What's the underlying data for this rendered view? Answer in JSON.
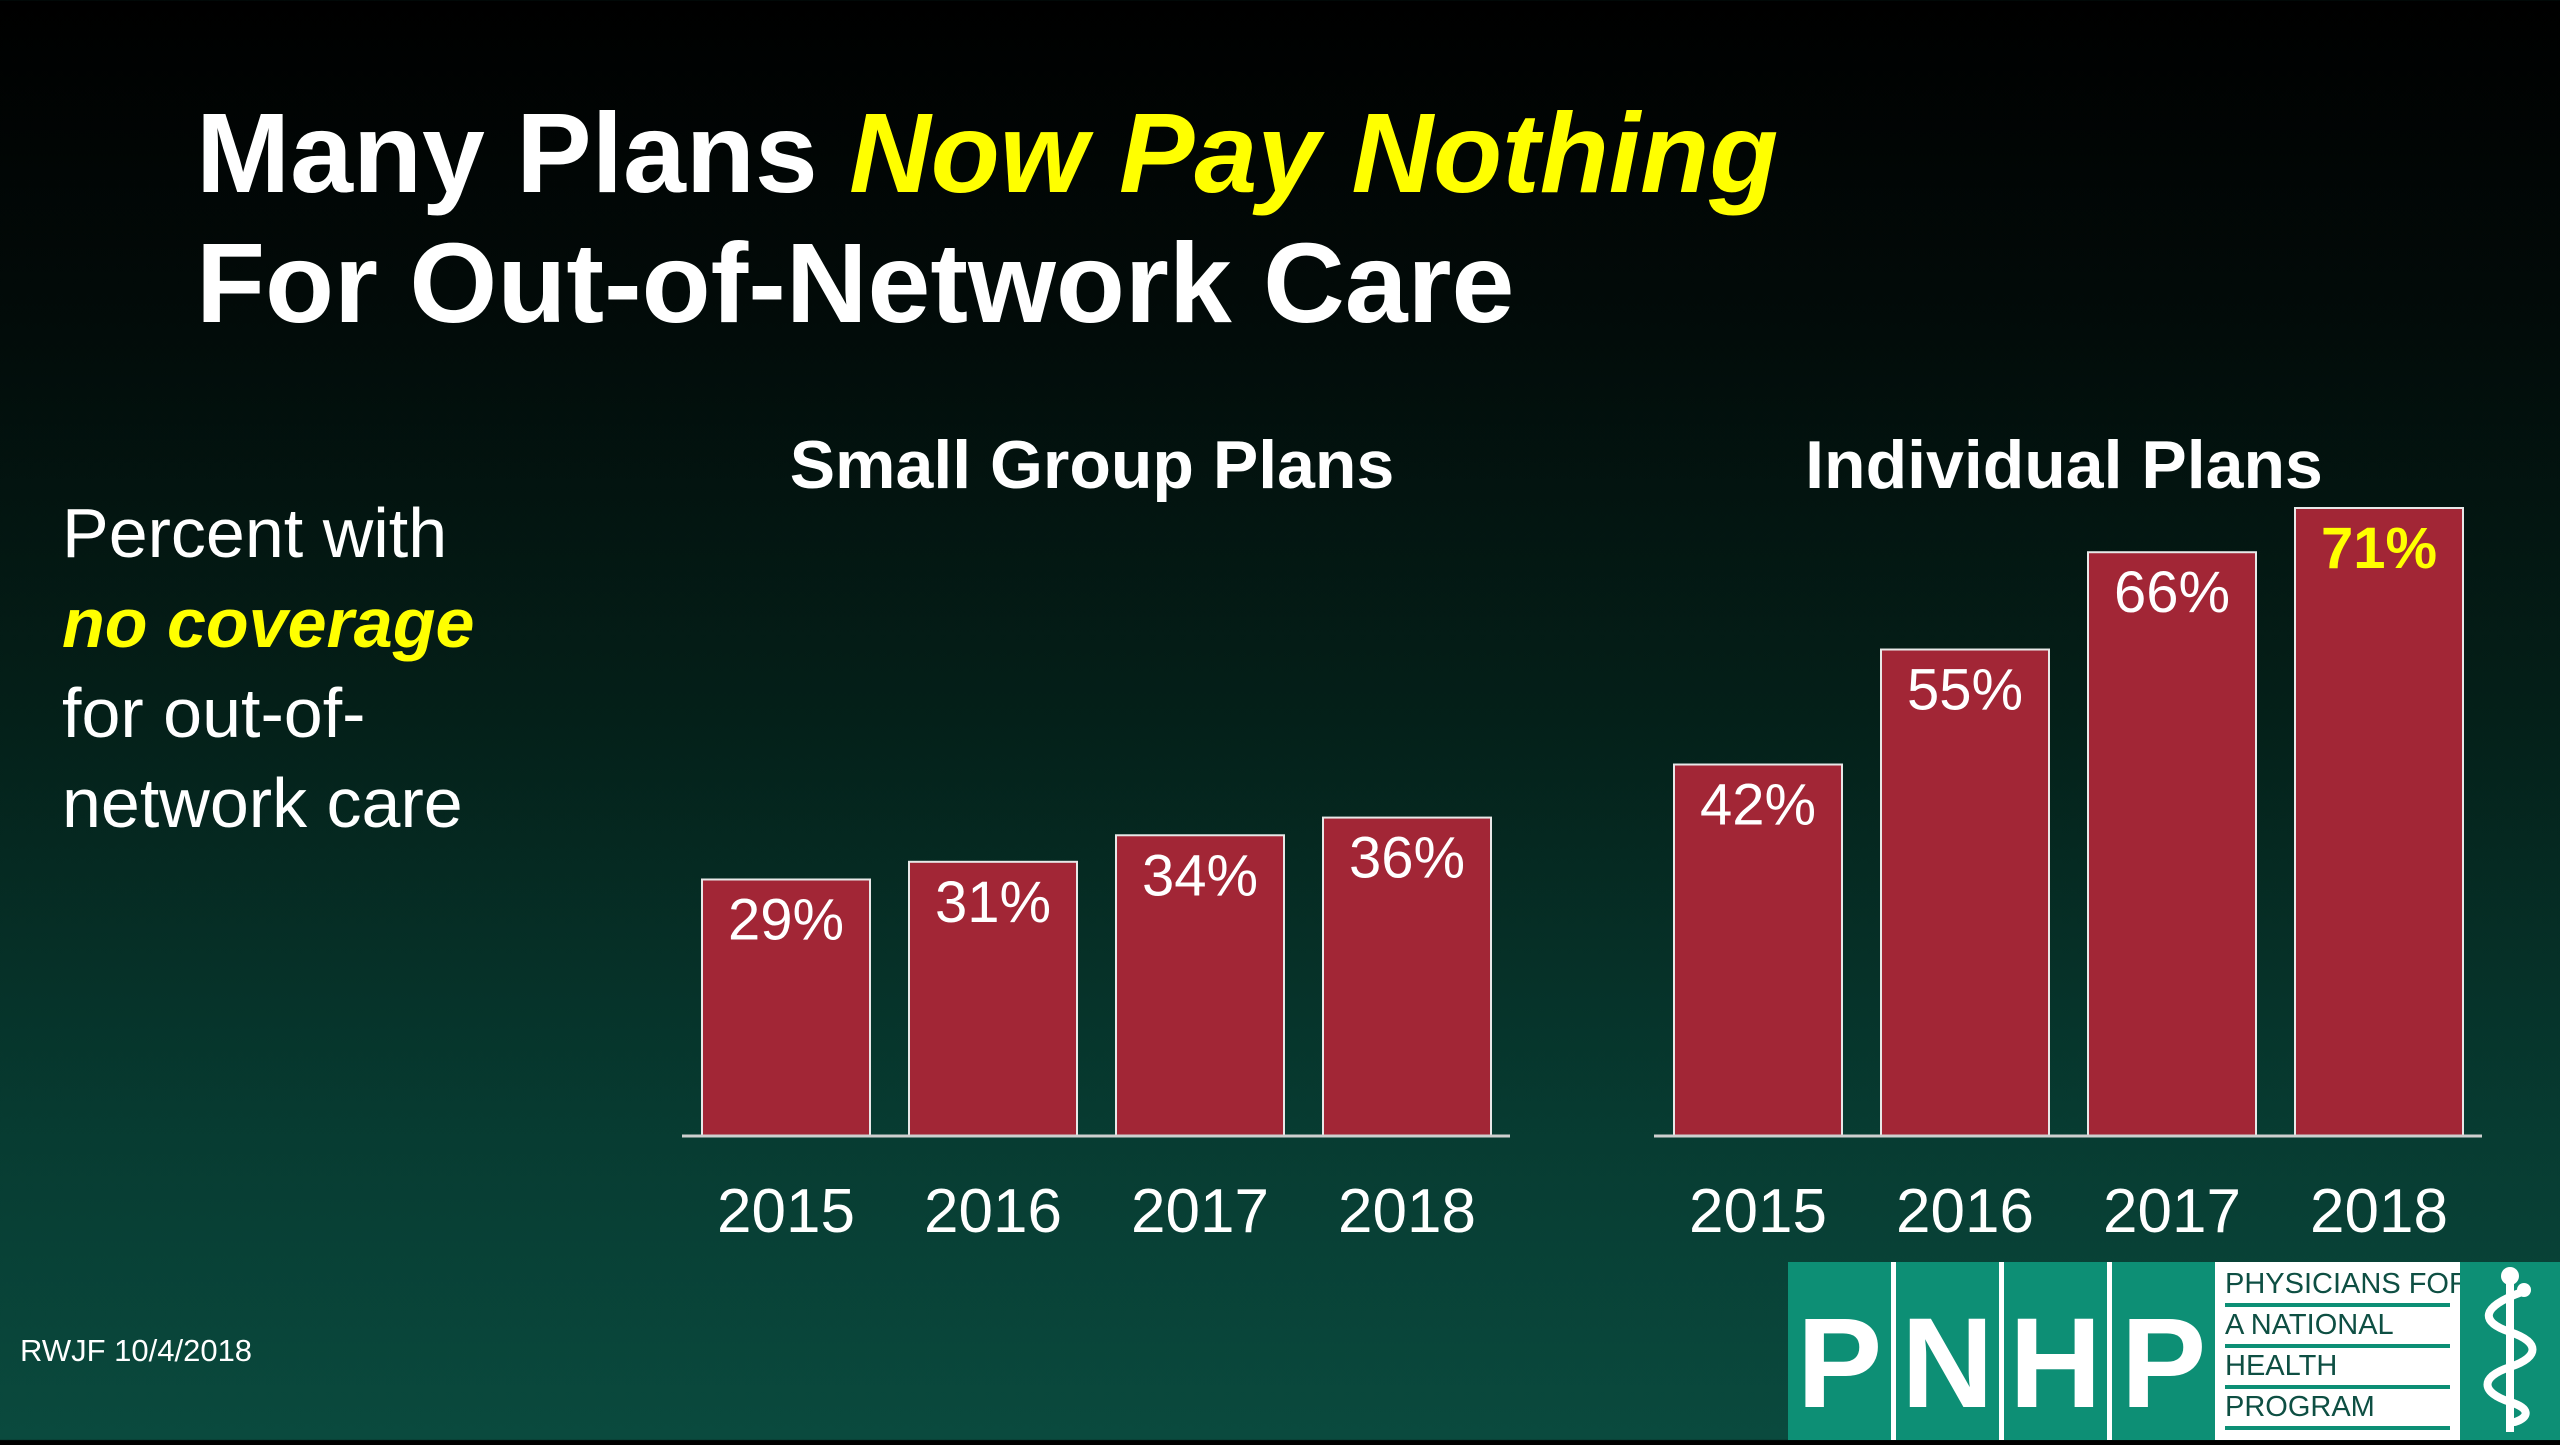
{
  "slide": {
    "title_line1_plain": "Many Plans ",
    "title_line1_highlight": "Now Pay Nothing",
    "title_line2": "For Out-of-Network Care",
    "side_line1": "Percent with",
    "side_highlight": "no coverage",
    "side_line3": "for out-of-",
    "side_line4": "network care",
    "footnote": "RWJF 10/4/2018"
  },
  "logo": {
    "letters": [
      "P",
      "N",
      "H",
      "P"
    ],
    "words": [
      "PHYSICIANS FOR",
      "A NATIONAL",
      "HEALTH",
      "PROGRAM"
    ],
    "icon": "caduceus-icon"
  },
  "colors": {
    "bar": "#a22636",
    "highlight": "#ffff00",
    "text": "#ffffff",
    "logo_green": "#0d8f75"
  },
  "chart_data": [
    {
      "type": "bar",
      "title": "Small Group Plans",
      "categories": [
        "2015",
        "2016",
        "2017",
        "2018"
      ],
      "values": [
        29,
        31,
        34,
        36
      ],
      "value_labels": [
        "29%",
        "31%",
        "34%",
        "36%"
      ],
      "ylim": [
        0,
        71
      ],
      "axis_visible": false,
      "grid": false
    },
    {
      "type": "bar",
      "title": "Individual Plans",
      "categories": [
        "2015",
        "2016",
        "2017",
        "2018"
      ],
      "values": [
        42,
        55,
        66,
        71
      ],
      "value_labels": [
        "42%",
        "55%",
        "66%",
        "71%"
      ],
      "highlighted_label": "71%",
      "ylim": [
        0,
        71
      ],
      "axis_visible": false,
      "grid": false
    }
  ]
}
